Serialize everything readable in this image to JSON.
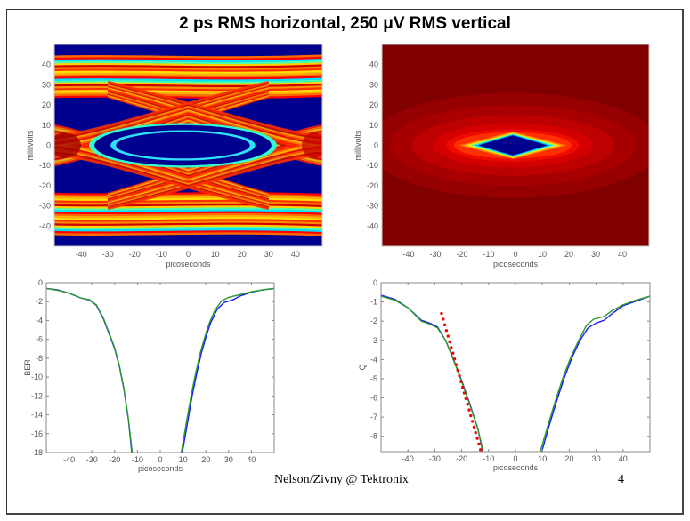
{
  "slide": {
    "title": "2 ps RMS horizontal, 250 μV RMS vertical",
    "footer_text": "Nelson/Zivny @ Tektronix",
    "page_number": "4"
  },
  "chart_data": [
    {
      "id": "eye-diagram",
      "type": "heatmap",
      "title": "",
      "xlabel": "picoseconds",
      "ylabel": "millivolts",
      "xlim": [
        -50,
        50
      ],
      "ylim": [
        -50,
        50
      ],
      "xticks": [
        -40,
        -30,
        -20,
        -10,
        0,
        10,
        20,
        30,
        40
      ],
      "yticks": [
        40,
        30,
        20,
        10,
        0,
        -10,
        -20,
        -30,
        -40
      ],
      "colormap": "jet",
      "description": "Eye diagram density; inner eye opening roughly -35..35 ps, -10..10 mV"
    },
    {
      "id": "ber-contour",
      "type": "heatmap",
      "title": "",
      "xlabel": "picoseconds",
      "ylabel": "millivolts",
      "xlim": [
        -50,
        50
      ],
      "ylim": [
        -50,
        50
      ],
      "xticks": [
        -40,
        -30,
        -20,
        -10,
        0,
        10,
        20,
        30,
        40
      ],
      "yticks": [
        40,
        30,
        20,
        10,
        0,
        -10,
        -20,
        -30,
        -40
      ],
      "colormap": "jet",
      "description": "BER contour; open region diamond approximately -13..13 ps, -5..5 mV"
    },
    {
      "id": "ber-bathtub",
      "type": "line",
      "title": "",
      "xlabel": "picoseconds",
      "ylabel": "BER",
      "xlim": [
        -50,
        50
      ],
      "ylim": [
        -18,
        0
      ],
      "xticks": [
        -40,
        -30,
        -20,
        -10,
        0,
        10,
        20,
        30,
        40
      ],
      "yticks": [
        0,
        -2,
        -4,
        -6,
        -8,
        -10,
        -12,
        -14,
        -16,
        -18
      ],
      "series": [
        {
          "name": "blue",
          "color": "#1a1aff",
          "left": {
            "x": [
              -50,
              -45,
              -40,
              -35,
              -31,
              -28,
              -25,
              -22,
              -20,
              -18,
              -16,
              -14,
              -12.5
            ],
            "y": [
              -0.6,
              -0.75,
              -1.1,
              -1.6,
              -1.85,
              -2.4,
              -3.8,
              -5.7,
              -7.0,
              -8.8,
              -11.2,
              -14.5,
              -18
            ]
          },
          "right": {
            "x": [
              9.7,
              12,
              14,
              16,
              18,
              20,
              22,
              25,
              28,
              32,
              35,
              40,
              45,
              50
            ],
            "y": [
              -18,
              -14.8,
              -12,
              -9.6,
              -7.5,
              -5.8,
              -4.3,
              -2.8,
              -2.1,
              -1.8,
              -1.4,
              -1.0,
              -0.75,
              -0.6
            ]
          }
        },
        {
          "name": "green",
          "color": "#2a9a2a",
          "left": {
            "x": [
              -50,
              -45,
              -40,
              -35,
              -31,
              -28,
              -25,
              -22,
              -20,
              -18,
              -16,
              -14,
              -12.3
            ],
            "y": [
              -0.6,
              -0.8,
              -1.1,
              -1.6,
              -1.8,
              -2.35,
              -3.7,
              -5.6,
              -6.9,
              -8.7,
              -11.1,
              -14.4,
              -18
            ]
          },
          "right": {
            "x": [
              9.2,
              11.5,
              13.5,
              15.5,
              17.5,
              19.5,
              21.5,
              24,
              27,
              30,
              35,
              40,
              45,
              50
            ],
            "y": [
              -18,
              -14.8,
              -12,
              -9.6,
              -7.5,
              -5.8,
              -4.3,
              -2.9,
              -1.9,
              -1.55,
              -1.25,
              -0.95,
              -0.75,
              -0.6
            ]
          }
        }
      ]
    },
    {
      "id": "q-bathtub",
      "type": "line",
      "title": "",
      "xlabel": "picoseconds",
      "ylabel": "Q",
      "xlim": [
        -50,
        50
      ],
      "ylim": [
        -8.8,
        0
      ],
      "xticks": [
        -40,
        -30,
        -20,
        -10,
        0,
        10,
        20,
        30,
        40
      ],
      "yticks": [
        0,
        -1,
        -2,
        -3,
        -4,
        -5,
        -6,
        -7,
        -8
      ],
      "series": [
        {
          "name": "blue",
          "color": "#1a1aff",
          "left": {
            "x": [
              -50,
              -45,
              -40,
              -35,
              -32,
              -29,
              -26,
              -23,
              -20,
              -17,
              -14,
              -12.2
            ],
            "y": [
              -0.65,
              -0.85,
              -1.3,
              -1.95,
              -2.1,
              -2.3,
              -3.0,
              -4.0,
              -5.1,
              -6.3,
              -7.6,
              -8.8
            ]
          },
          "right": {
            "x": [
              9.8,
              12,
              15,
              18,
              21,
              24,
              27,
              30,
              33,
              36,
              40,
              45,
              50
            ],
            "y": [
              -8.8,
              -7.7,
              -6.3,
              -5.0,
              -3.9,
              -3.0,
              -2.35,
              -2.1,
              -1.95,
              -1.6,
              -1.2,
              -0.95,
              -0.7
            ]
          }
        },
        {
          "name": "green",
          "color": "#2a9a2a",
          "left": {
            "x": [
              -50,
              -45,
              -40,
              -35,
              -32,
              -29,
              -26,
              -23,
              -20,
              -17,
              -14,
              -12
            ],
            "y": [
              -0.7,
              -0.9,
              -1.3,
              -2.0,
              -2.15,
              -2.35,
              -3.0,
              -4.05,
              -5.15,
              -6.35,
              -7.6,
              -8.8
            ]
          },
          "right": {
            "x": [
              9.2,
              11.5,
              14.5,
              17.5,
              20.5,
              23.5,
              26.5,
              29,
              33,
              36,
              40,
              45,
              50
            ],
            "y": [
              -8.8,
              -7.7,
              -6.3,
              -5.0,
              -3.9,
              -3.0,
              -2.2,
              -1.9,
              -1.75,
              -1.45,
              -1.15,
              -0.9,
              -0.7
            ]
          }
        },
        {
          "name": "linear-fit",
          "color": "#ff0000",
          "style": "dotted",
          "x": [
            -27.5,
            -13
          ],
          "y": [
            -1.6,
            -8.7
          ]
        }
      ]
    }
  ]
}
